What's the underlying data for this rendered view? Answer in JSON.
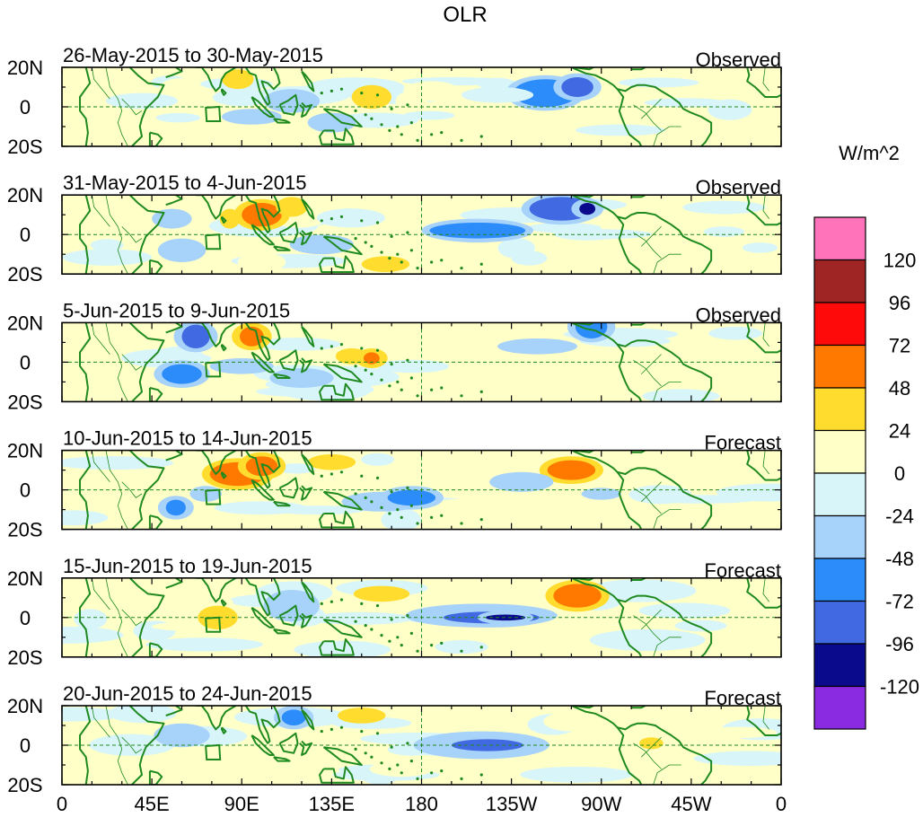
{
  "chart_data": {
    "type": "heatmap",
    "title": "OLR",
    "units_label": "W/m^2",
    "x_ticks": [
      "0",
      "45E",
      "90E",
      "135E",
      "180",
      "135W",
      "90W",
      "45W",
      "0"
    ],
    "y_ticks": [
      "20N",
      "0",
      "20S"
    ],
    "lon_range": [
      0,
      360
    ],
    "lat_range": [
      -20,
      20
    ],
    "colorbar": {
      "levels": [
        "120",
        "96",
        "72",
        "48",
        "24",
        "0",
        "-24",
        "-48",
        "-72",
        "-96",
        "-120"
      ],
      "colors": [
        "#ff73bb",
        "#9f2525",
        "#ff0a0a",
        "#ff7800",
        "#ffdc2e",
        "#ffffc8",
        "#d8f5fa",
        "#a7d2fa",
        "#2b8cfa",
        "#4169e1",
        "#0a0a8c",
        "#8a2be2"
      ]
    },
    "panels": [
      {
        "date_range": "26-May-2015 to 30-May-2015",
        "kind": "Observed",
        "features": [
          {
            "lon": 155,
            "lat": 5,
            "rx": 10,
            "ry": 6,
            "value": 30
          },
          {
            "lon": 175,
            "lat": 3,
            "rx": 8,
            "ry": 5,
            "value": 22
          },
          {
            "lon": 185,
            "lat": 8,
            "rx": 14,
            "ry": 5,
            "value": 18
          },
          {
            "lon": 242,
            "lat": 7,
            "rx": 16,
            "ry": 7,
            "value": -55
          },
          {
            "lon": 258,
            "lat": 10,
            "rx": 8,
            "ry": 5,
            "value": -78
          },
          {
            "lon": 218,
            "lat": 6,
            "rx": 18,
            "ry": 4,
            "value": -18
          },
          {
            "lon": 40,
            "lat": 3,
            "rx": 18,
            "ry": 4,
            "value": -20
          },
          {
            "lon": 95,
            "lat": -5,
            "rx": 15,
            "ry": 4,
            "value": -30
          },
          {
            "lon": 135,
            "lat": -8,
            "rx": 12,
            "ry": 5,
            "value": -40
          },
          {
            "lon": 115,
            "lat": 3,
            "rx": 14,
            "ry": 6,
            "value": -25
          },
          {
            "lon": 88,
            "lat": 14,
            "rx": 8,
            "ry": 5,
            "value": 28
          }
        ]
      },
      {
        "date_range": "31-May-2015 to 4-Jun-2015",
        "kind": "Observed",
        "features": [
          {
            "lon": 84,
            "lat": 8,
            "rx": 5,
            "ry": 5,
            "value": 30
          },
          {
            "lon": 100,
            "lat": 10,
            "rx": 10,
            "ry": 6,
            "value": 55
          },
          {
            "lon": 115,
            "lat": 14,
            "rx": 8,
            "ry": 5,
            "value": 28
          },
          {
            "lon": 208,
            "lat": 2,
            "rx": 24,
            "ry": 4,
            "value": -50
          },
          {
            "lon": 250,
            "lat": 13,
            "rx": 16,
            "ry": 6,
            "value": -75
          },
          {
            "lon": 263,
            "lat": 13,
            "rx": 4,
            "ry": 3,
            "value": -110
          },
          {
            "lon": 55,
            "lat": 8,
            "rx": 10,
            "ry": 5,
            "value": -35
          },
          {
            "lon": 60,
            "lat": -8,
            "rx": 12,
            "ry": 6,
            "value": -40
          },
          {
            "lon": 130,
            "lat": -5,
            "rx": 16,
            "ry": 5,
            "value": -35
          },
          {
            "lon": 162,
            "lat": -15,
            "rx": 12,
            "ry": 4,
            "value": 26
          },
          {
            "lon": 100,
            "lat": -14,
            "rx": 12,
            "ry": 5,
            "value": 22
          }
        ]
      },
      {
        "date_range": "5-Jun-2015 to 9-Jun-2015",
        "kind": "Observed",
        "features": [
          {
            "lon": 67,
            "lat": 13,
            "rx": 7,
            "ry": 6,
            "value": -78
          },
          {
            "lon": 95,
            "lat": 13,
            "rx": 6,
            "ry": 5,
            "value": 55
          },
          {
            "lon": 60,
            "lat": -6,
            "rx": 10,
            "ry": 5,
            "value": -70
          },
          {
            "lon": 90,
            "lat": -2,
            "rx": 16,
            "ry": 4,
            "value": -40
          },
          {
            "lon": 145,
            "lat": 3,
            "rx": 8,
            "ry": 4,
            "value": 30
          },
          {
            "lon": 155,
            "lat": 2,
            "rx": 4,
            "ry": 3,
            "value": 60
          },
          {
            "lon": 265,
            "lat": 18,
            "rx": 8,
            "ry": 6,
            "value": -60
          },
          {
            "lon": 238,
            "lat": 8,
            "rx": 20,
            "ry": 4,
            "value": -28
          },
          {
            "lon": 195,
            "lat": 8,
            "rx": 18,
            "ry": 4,
            "value": 22
          },
          {
            "lon": 120,
            "lat": -8,
            "rx": 16,
            "ry": 5,
            "value": -30
          },
          {
            "lon": 195,
            "lat": -14,
            "rx": 14,
            "ry": 4,
            "value": 20
          }
        ]
      },
      {
        "date_range": "10-Jun-2015 to 14-Jun-2015",
        "kind": "Forecast",
        "features": [
          {
            "lon": 88,
            "lat": 8,
            "rx": 14,
            "ry": 6,
            "value": 55
          },
          {
            "lon": 100,
            "lat": 12,
            "rx": 8,
            "ry": 5,
            "value": 60
          },
          {
            "lon": 255,
            "lat": 10,
            "rx": 12,
            "ry": 5,
            "value": 60
          },
          {
            "lon": 160,
            "lat": -6,
            "rx": 20,
            "ry": 5,
            "value": -40
          },
          {
            "lon": 175,
            "lat": -4,
            "rx": 12,
            "ry": 4,
            "value": -55
          },
          {
            "lon": 57,
            "lat": -9,
            "rx": 5,
            "ry": 4,
            "value": -70
          },
          {
            "lon": 72,
            "lat": -2,
            "rx": 8,
            "ry": 4,
            "value": -40
          },
          {
            "lon": 205,
            "lat": 9,
            "rx": 18,
            "ry": 4,
            "value": 22
          },
          {
            "lon": 230,
            "lat": 4,
            "rx": 16,
            "ry": 5,
            "value": -25
          },
          {
            "lon": 135,
            "lat": 14,
            "rx": 12,
            "ry": 4,
            "value": 25
          },
          {
            "lon": 270,
            "lat": -2,
            "rx": 10,
            "ry": 3,
            "value": -30
          }
        ]
      },
      {
        "date_range": "15-Jun-2015 to 19-Jun-2015",
        "kind": "Forecast",
        "features": [
          {
            "lon": 210,
            "lat": 1,
            "rx": 38,
            "ry": 6,
            "value": -45
          },
          {
            "lon": 215,
            "lat": 0,
            "rx": 24,
            "ry": 3,
            "value": -80
          },
          {
            "lon": 222,
            "lat": 0,
            "rx": 10,
            "ry": 1.5,
            "value": -115
          },
          {
            "lon": 258,
            "lat": 11,
            "rx": 12,
            "ry": 6,
            "value": 55
          },
          {
            "lon": 160,
            "lat": 12,
            "rx": 14,
            "ry": 4,
            "value": 28
          },
          {
            "lon": 78,
            "lat": 0,
            "rx": 10,
            "ry": 6,
            "value": 30
          },
          {
            "lon": 115,
            "lat": 6,
            "rx": 14,
            "ry": 8,
            "value": -30
          },
          {
            "lon": 30,
            "lat": 18,
            "rx": 18,
            "ry": 3,
            "value": 20
          },
          {
            "lon": 200,
            "lat": 14,
            "rx": 12,
            "ry": 3,
            "value": 20
          }
        ]
      },
      {
        "date_range": "20-Jun-2015 to 24-Jun-2015",
        "kind": "Forecast",
        "features": [
          {
            "lon": 210,
            "lat": 0,
            "rx": 34,
            "ry": 7,
            "value": -40
          },
          {
            "lon": 213,
            "lat": 0,
            "rx": 18,
            "ry": 3,
            "value": -80
          },
          {
            "lon": 150,
            "lat": 15,
            "rx": 12,
            "ry": 4,
            "value": 25
          },
          {
            "lon": 116,
            "lat": 14,
            "rx": 6,
            "ry": 4,
            "value": -55
          },
          {
            "lon": 60,
            "lat": 5,
            "rx": 14,
            "ry": 6,
            "value": -25
          },
          {
            "lon": 295,
            "lat": 1,
            "rx": 6,
            "ry": 3,
            "value": 26
          },
          {
            "lon": 255,
            "lat": 12,
            "rx": 14,
            "ry": 5,
            "value": 22
          },
          {
            "lon": 170,
            "lat": -12,
            "rx": 16,
            "ry": 4,
            "value": 18
          }
        ]
      }
    ]
  }
}
